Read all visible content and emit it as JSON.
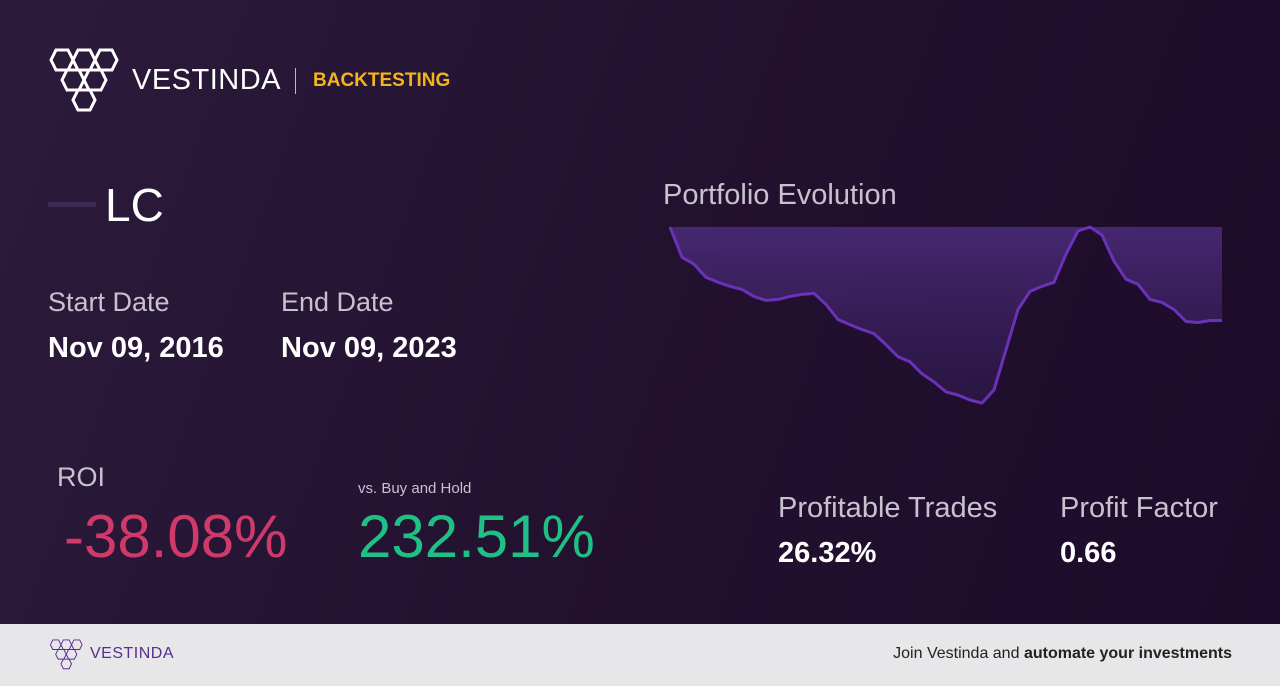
{
  "header": {
    "brand": "VESTINDA",
    "section": "BACKTESTING"
  },
  "ticker": "LC",
  "dates": {
    "start_label": "Start Date",
    "start": "Nov 09, 2016",
    "end_label": "End Date",
    "end": "Nov 09, 2023"
  },
  "portfolio": {
    "title": "Portfolio Evolution",
    "values": [
      182,
      152,
      145,
      132,
      127,
      123,
      120,
      113,
      109,
      110,
      113,
      115,
      116,
      105,
      90,
      85,
      80,
      76,
      65,
      53,
      48,
      36,
      28,
      18,
      15,
      10,
      7,
      20,
      60,
      100,
      118,
      123,
      127,
      155,
      178,
      182,
      174,
      148,
      130,
      125,
      110,
      107,
      100,
      88,
      87,
      89,
      89
    ]
  },
  "roi": {
    "label": "ROI",
    "value": "-38.08%",
    "compare_label": "vs. Buy and Hold",
    "compare": "232.51%"
  },
  "stats": {
    "trades_label": "Profitable Trades",
    "trades": "26.32%",
    "factor_label": "Profit Factor",
    "factor": "0.66"
  },
  "footer": {
    "brand": "VESTINDA",
    "cta_prefix": "Join Vestinda and",
    "cta_bold": "automate your investments"
  }
}
